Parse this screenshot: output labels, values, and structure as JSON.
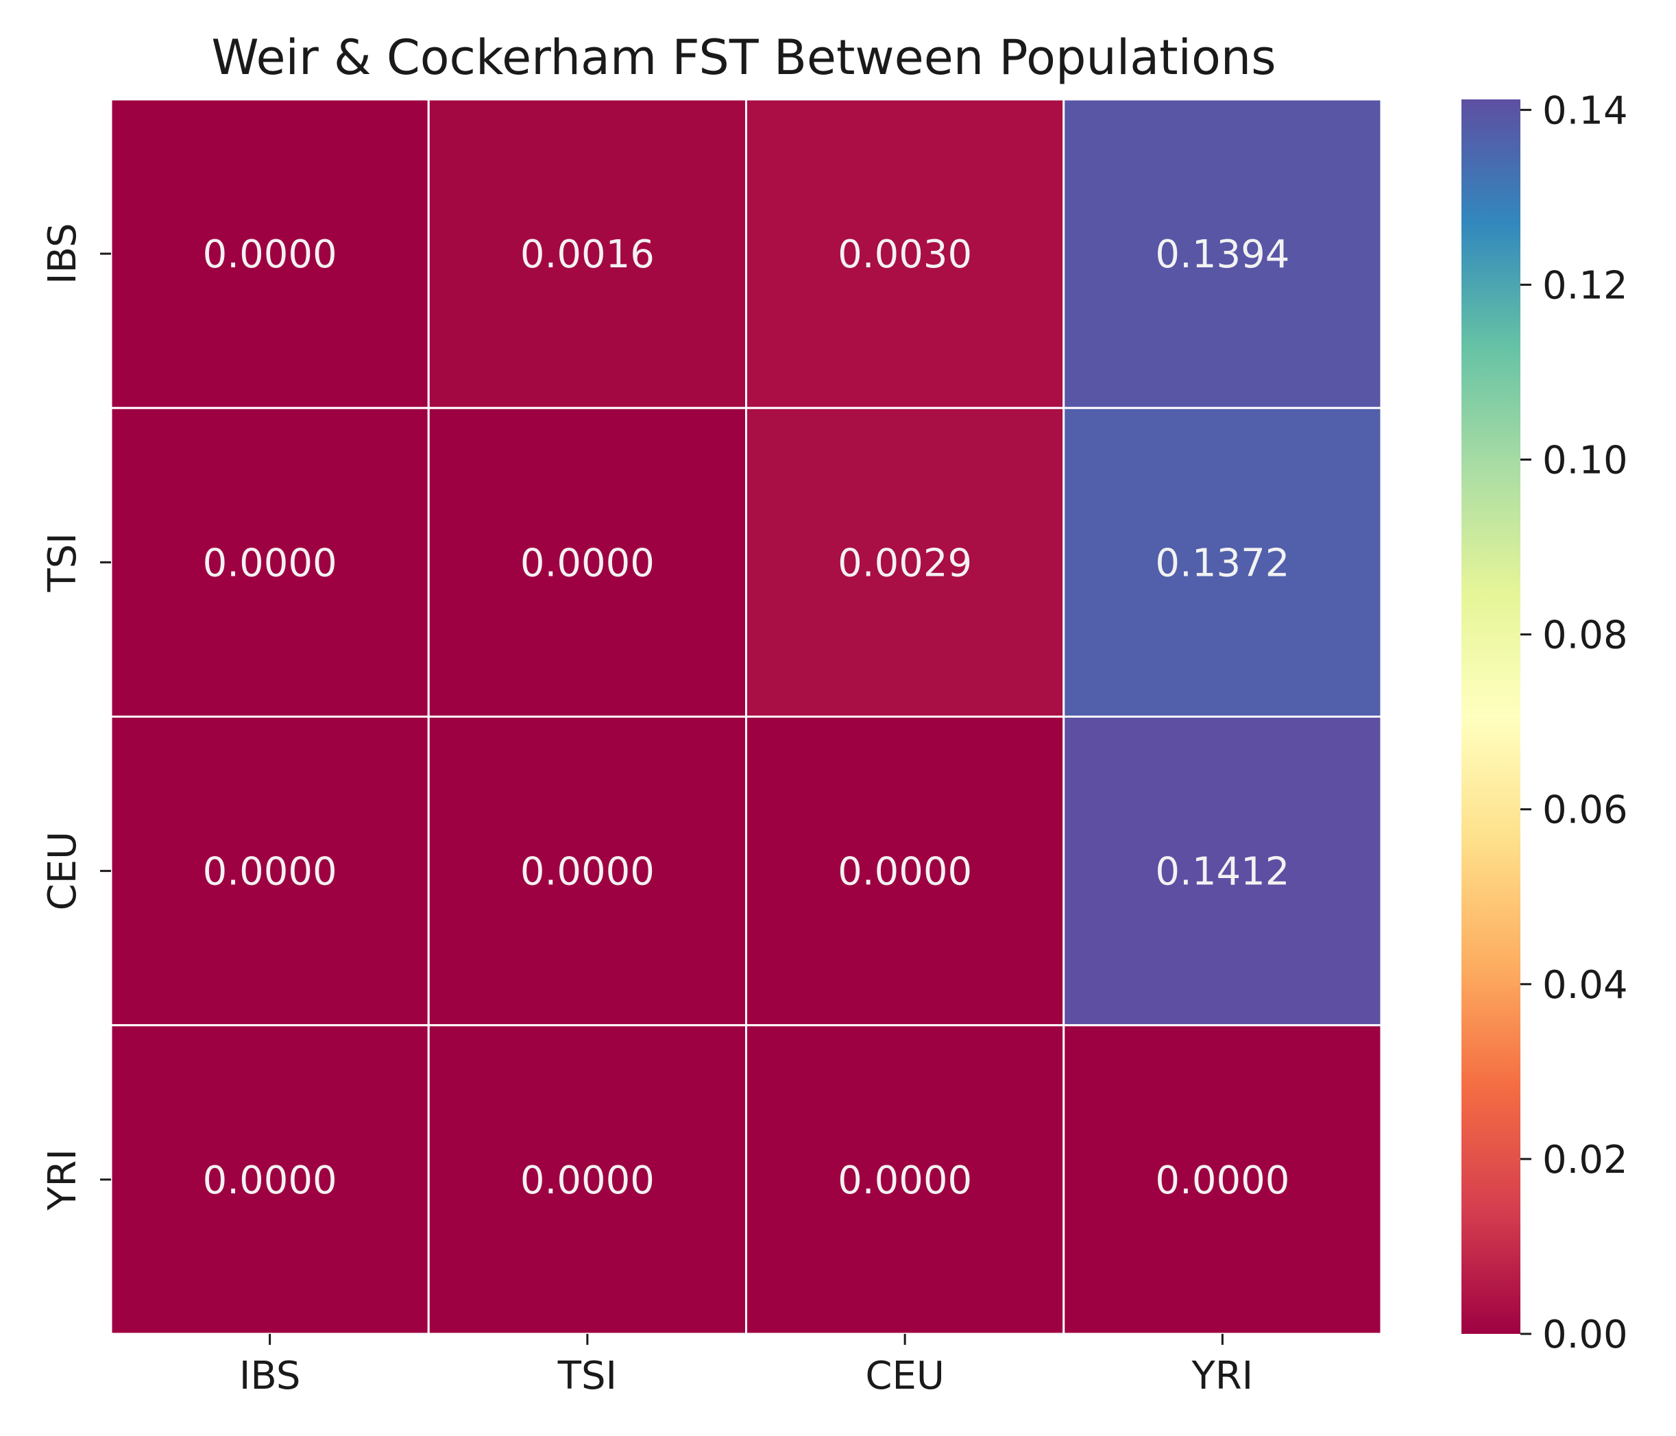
{
  "chart_data": {
    "type": "heatmap",
    "title": "Weir & Cockerham FST Between Populations",
    "x_categories": [
      "IBS",
      "TSI",
      "CEU",
      "YRI"
    ],
    "y_categories": [
      "IBS",
      "TSI",
      "CEU",
      "YRI"
    ],
    "values": [
      [
        0.0,
        0.0016,
        0.003,
        0.1394
      ],
      [
        0.0,
        0.0,
        0.0029,
        0.1372
      ],
      [
        0.0,
        0.0,
        0.0,
        0.1412
      ],
      [
        0.0,
        0.0,
        0.0,
        0.0
      ]
    ],
    "cell_labels": [
      [
        "0.0000",
        "0.0016",
        "0.0030",
        "0.1394"
      ],
      [
        "0.0000",
        "0.0000",
        "0.0029",
        "0.1372"
      ],
      [
        "0.0000",
        "0.0000",
        "0.0000",
        "0.1412"
      ],
      [
        "0.0000",
        "0.0000",
        "0.0000",
        "0.0000"
      ]
    ],
    "colorbar": {
      "colormap": "Spectral",
      "range": [
        0.0,
        0.1412
      ],
      "ticks": [
        0.0,
        0.02,
        0.04,
        0.06,
        0.08,
        0.1,
        0.12,
        0.14
      ],
      "tick_labels": [
        "0.00",
        "0.02",
        "0.04",
        "0.06",
        "0.08",
        "0.10",
        "0.12",
        "0.14"
      ],
      "stops": [
        "#9e0142",
        "#d53e4f",
        "#f46d43",
        "#fdae61",
        "#fee08b",
        "#ffffbf",
        "#e6f598",
        "#abdda4",
        "#66c2a5",
        "#3288bd",
        "#5e4fa2"
      ]
    },
    "xlabel": "",
    "ylabel": "",
    "grid": false,
    "cell_border_color": "#ffffff"
  }
}
